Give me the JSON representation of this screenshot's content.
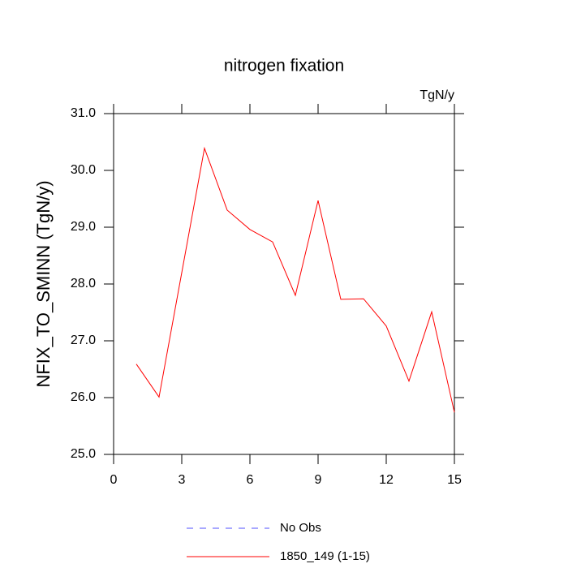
{
  "chart_data": {
    "type": "line",
    "title": "nitrogen fixation",
    "unit_label": "TgN/y",
    "y_label": "NFIX_TO_SMINN  (TgN/y)",
    "x": [
      1,
      2,
      3,
      4,
      5,
      6,
      7,
      8,
      9,
      10,
      11,
      12,
      13,
      14,
      15
    ],
    "series": [
      {
        "name": "No Obs",
        "color": "#5050ff",
        "dashed": true,
        "values": [
          null,
          null,
          null,
          null,
          null,
          null,
          null,
          null,
          null,
          null,
          null,
          null,
          null,
          null,
          null
        ]
      },
      {
        "name": "1850_149 (1-15)",
        "color": "#ff0000",
        "dashed": false,
        "values": [
          26.59,
          26.01,
          28.2,
          30.39,
          29.3,
          28.96,
          28.74,
          27.8,
          29.47,
          27.73,
          27.74,
          27.26,
          26.29,
          27.51,
          25.74
        ]
      }
    ],
    "xlim": [
      0,
      15
    ],
    "xticks": [
      0,
      3,
      6,
      9,
      12,
      15
    ],
    "ylim": [
      25,
      31
    ],
    "yticks": [
      {
        "value": 25,
        "label": "25.0"
      },
      {
        "value": 26,
        "label": "26.0"
      },
      {
        "value": 27,
        "label": "27.0"
      },
      {
        "value": 28,
        "label": "28.0"
      },
      {
        "value": 29,
        "label": "29.0"
      },
      {
        "value": 30,
        "label": "30.0"
      },
      {
        "value": 31,
        "label": "31.0"
      }
    ]
  }
}
